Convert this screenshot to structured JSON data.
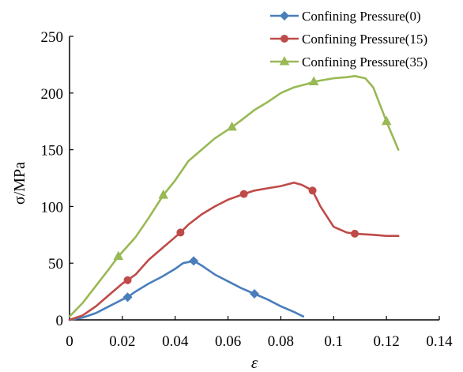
{
  "chart_data": {
    "type": "line",
    "xlabel": "ε",
    "ylabel": "σ/MPa",
    "xlim": [
      0,
      0.14
    ],
    "ylim": [
      0,
      250
    ],
    "xticks": [
      0,
      0.02,
      0.04,
      0.06,
      0.08,
      0.1,
      0.12,
      0.14
    ],
    "xtick_labels": [
      "0",
      "0.02",
      "0.04",
      "0.06",
      "0.08",
      "0.1",
      "0.12",
      "0.14"
    ],
    "yticks": [
      0,
      50,
      100,
      150,
      200,
      250
    ],
    "ytick_labels": [
      "0",
      "50",
      "100",
      "150",
      "200",
      "250"
    ],
    "grid": false,
    "legend_position": "top-right",
    "series": [
      {
        "name": "Confining Pressure(0)",
        "color": "#4a7ebb",
        "marker": "diamond",
        "x": [
          0,
          0.005,
          0.01,
          0.015,
          0.02,
          0.022,
          0.025,
          0.03,
          0.035,
          0.04,
          0.043,
          0.045,
          0.047,
          0.05,
          0.055,
          0.06,
          0.065,
          0.07,
          0.075,
          0.08,
          0.085,
          0.0885
        ],
        "y": [
          0,
          2,
          6,
          12,
          18,
          20,
          25,
          32,
          38,
          45,
          50,
          51,
          52,
          48,
          40,
          34,
          28,
          23,
          18,
          12,
          7,
          3
        ],
        "markers_x": [
          0.022,
          0.047,
          0.07
        ],
        "markers_y": [
          20,
          52,
          23
        ]
      },
      {
        "name": "Confining Pressure(15)",
        "color": "#be4b48",
        "marker": "circle",
        "x": [
          0,
          0.005,
          0.01,
          0.015,
          0.02,
          0.022,
          0.025,
          0.03,
          0.035,
          0.04,
          0.042,
          0.045,
          0.05,
          0.055,
          0.06,
          0.066,
          0.07,
          0.075,
          0.08,
          0.085,
          0.088,
          0.092,
          0.095,
          0.1,
          0.105,
          0.108,
          0.115,
          0.12,
          0.1245
        ],
        "y": [
          0,
          4,
          12,
          22,
          32,
          35,
          40,
          53,
          63,
          73,
          77,
          84,
          93,
          100,
          106,
          111,
          114,
          116,
          118,
          121,
          119,
          114,
          100,
          82,
          77,
          76,
          75,
          74,
          74
        ],
        "markers_x": [
          0.022,
          0.042,
          0.066,
          0.092,
          0.108
        ],
        "markers_y": [
          35,
          77,
          111,
          114,
          76
        ]
      },
      {
        "name": "Confining Pressure(35)",
        "color": "#98b954",
        "marker": "triangle",
        "x": [
          0,
          0.005,
          0.01,
          0.015,
          0.0185,
          0.025,
          0.03,
          0.0355,
          0.04,
          0.045,
          0.05,
          0.055,
          0.0615,
          0.065,
          0.07,
          0.075,
          0.08,
          0.085,
          0.09,
          0.0925,
          0.1,
          0.105,
          0.108,
          0.112,
          0.115,
          0.12,
          0.1245
        ],
        "y": [
          3,
          15,
          30,
          45,
          56,
          73,
          90,
          110,
          123,
          140,
          150,
          160,
          170,
          176,
          185,
          192,
          200,
          205,
          208,
          210,
          213,
          214,
          215,
          213,
          205,
          175,
          150
        ],
        "markers_x": [
          0.0185,
          0.0355,
          0.0615,
          0.0925,
          0.12
        ],
        "markers_y": [
          56,
          110,
          170,
          210,
          175
        ]
      }
    ]
  }
}
